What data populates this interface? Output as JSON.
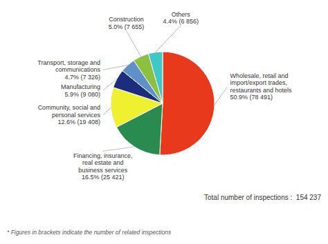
{
  "chart_data": {
    "type": "pie",
    "categories": [
      "Wholesale, retail and\nimport/export trades,\nrestaurants and hotels\n50.9% (78 491)",
      "Financing, insurance,\nreal estate and\nbusiness services\n16.5% (25 421)",
      "Community, social and\npersonal services\n12.6% (19 408)",
      "Manufacturing\n5.9% (9 080)",
      "Transport, storage and\ncommunications\n4.7% (7 326)",
      "Construction\n5.0% (7 655)",
      "Others\n4.4% (6 856)"
    ],
    "values": [
      50.9,
      16.5,
      12.6,
      5.9,
      4.7,
      5.0,
      4.4
    ],
    "colors": [
      "#E8391C",
      "#2A8B50",
      "#EEF030",
      "#1C2D80",
      "#6090C8",
      "#8CC040",
      "#40C8C8"
    ],
    "annotations": [
      "Total number of inspections :  154 237",
      "* Figures in brackets indicate the number of related inspections"
    ]
  }
}
